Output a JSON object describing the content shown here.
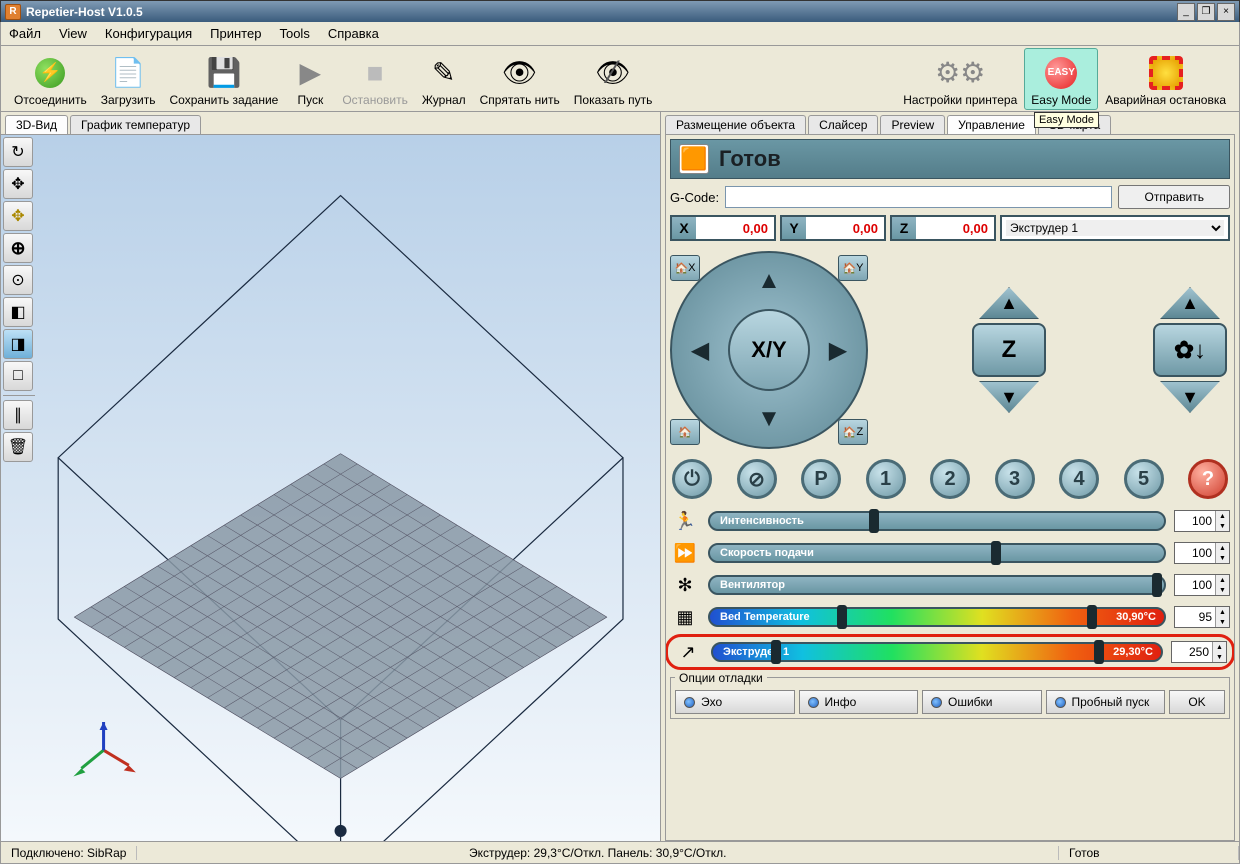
{
  "window": {
    "title": "Repetier-Host V1.0.5",
    "min": "_",
    "restore": "❐",
    "close": "×"
  },
  "menu": {
    "file": "Файл",
    "view": "View",
    "config": "Конфигурация",
    "printer": "Принтер",
    "tools": "Tools",
    "help": "Справка"
  },
  "toolbar": {
    "disconnect": "Отсоединить",
    "load": "Загрузить",
    "save_job": "Сохранить задание",
    "start": "Пуск",
    "stop": "Остановить",
    "log": "Журнал",
    "hide_fil": "Спрятать нить",
    "show_path": "Показать путь",
    "printer_settings": "Настройки принтера",
    "easy_mode": "Easy Mode",
    "emergency": "Аварийная остановка",
    "tooltip": "Easy Mode"
  },
  "left_tabs": {
    "view3d": "3D-Вид",
    "temp_graph": "График температур"
  },
  "right_tabs": {
    "placement": "Размещение объекта",
    "slicer": "Слайсер",
    "preview": "Preview",
    "control": "Управление",
    "sd": "SD-карта"
  },
  "status_header": "Готов",
  "gcode": {
    "label": "G-Code:",
    "value": "",
    "send": "Отправить"
  },
  "coords": {
    "x_label": "X",
    "x_val": "0,00",
    "y_label": "Y",
    "y_val": "0,00",
    "z_label": "Z",
    "z_val": "0,00",
    "extruder_sel": "Экструдер 1"
  },
  "jog": {
    "xy_label": "X/Y",
    "z_label": "Z",
    "home_x": "X",
    "home_y": "Y",
    "home_z": "Z"
  },
  "cmds": {
    "power": "⏻",
    "motor_off": "⊘",
    "park": "P",
    "n1": "1",
    "n2": "2",
    "n3": "3",
    "n4": "4",
    "n5": "5",
    "help": "?"
  },
  "sliders": {
    "speed": {
      "label": "Интенсивность",
      "value": "100",
      "knob_pct": 35
    },
    "feed": {
      "label": "Скорость подачи",
      "value": "100",
      "knob_pct": 62
    },
    "fan": {
      "label": "Вентилятор",
      "value": "100",
      "knob_pct": 100
    },
    "bed": {
      "label": "Bed Temperature",
      "value": "95",
      "reading": "30,90°C",
      "knob_pct": 83
    },
    "ext": {
      "label": "Экструдер 1",
      "value": "250",
      "reading": "29,30°C",
      "knob_pct": 85
    }
  },
  "debug": {
    "title": "Опции отладки",
    "echo": "Эхо",
    "info": "Инфо",
    "errors": "Ошибки",
    "dry": "Пробный пуск",
    "ok": "OK"
  },
  "statusbar": {
    "conn": "Подключено: SibRap",
    "temps": "Экструдер: 29,3°C/Откл. Панель: 30,9°C/Откл.",
    "ready": "Готов"
  }
}
